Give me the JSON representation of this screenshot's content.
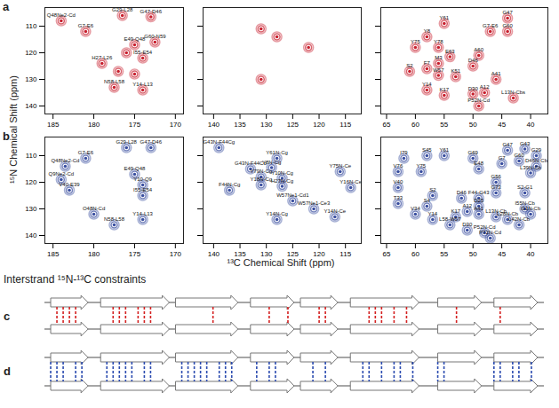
{
  "figure": {
    "panels": [
      "a",
      "b",
      "c",
      "d"
    ],
    "y_label": "¹⁵N Chemical Shift (ppm)",
    "x_label": "¹³C Chemical Shift (ppm)"
  },
  "chart_data": [
    {
      "type": "scatter",
      "color": "#c8202e",
      "xlim": [
        186,
        169
      ],
      "ylim": [
        143,
        103
      ],
      "xticks": [
        185,
        180,
        175,
        170
      ],
      "yticks": [
        110,
        120,
        130,
        140
      ],
      "tick_labels": true,
      "x": [
        184,
        176.5,
        173,
        181,
        175,
        172.5,
        174,
        179,
        177.5,
        174,
        176,
        177,
        175
      ],
      "values": [
        108,
        106,
        106.5,
        112,
        117,
        116,
        122,
        124,
        133,
        134,
        120,
        127,
        128
      ],
      "labels": [
        "Q48Ne2-Cd",
        "G29-L28",
        "G47-D46",
        "G7-E6",
        "E49-Q48",
        "G60-N59",
        "I55-E54",
        "H27-L26",
        "N58-L58",
        "Y14-L13",
        null,
        null,
        null
      ]
    },
    {
      "type": "scatter",
      "color": "#c8202e",
      "xlim": [
        142,
        112
      ],
      "ylim": [
        143,
        103
      ],
      "xticks": [
        140,
        135,
        130,
        125,
        120,
        115
      ],
      "yticks": [
        110,
        120,
        130,
        140
      ],
      "tick_labels": "x",
      "x": [
        131,
        128,
        131,
        122
      ],
      "values": [
        111,
        114,
        130,
        118
      ],
      "labels": [
        null,
        null,
        null,
        null
      ]
    },
    {
      "type": "scatter",
      "color": "#c8202e",
      "xlim": [
        66,
        37
      ],
      "ylim": [
        143,
        103
      ],
      "xticks": [
        65,
        60,
        55,
        50,
        45,
        40
      ],
      "yticks": [
        110,
        120,
        130,
        140
      ],
      "tick_labels": "x",
      "x": [
        44,
        55,
        44,
        47,
        58,
        60,
        56,
        54,
        49,
        56,
        50,
        58,
        61,
        56,
        53,
        46,
        58,
        55,
        50,
        48,
        43,
        49
      ],
      "values": [
        107,
        109,
        112,
        112,
        114,
        118,
        118,
        121.5,
        121,
        124,
        125,
        126,
        127,
        128.5,
        129,
        130,
        134,
        136,
        135.5,
        135,
        137,
        140
      ],
      "labels": [
        "G47",
        "Y61",
        "G60",
        "G7-E6",
        "Y8",
        "Y75",
        "Y78",
        "E63",
        "A60",
        "M3",
        "D46",
        "F7",
        "S2",
        "W57",
        "K51",
        "A41",
        "Y14",
        "K17",
        "D30",
        "A12",
        "L13N-Cbs",
        "P52N-Cd"
      ]
    },
    {
      "type": "scatter",
      "color": "#3a4fa0",
      "xlim": [
        186,
        169
      ],
      "ylim": [
        143,
        103
      ],
      "xticks": [
        185,
        180,
        175,
        170
      ],
      "yticks": [
        110,
        120,
        130,
        140
      ],
      "tick_labels": true,
      "x": [
        181,
        176,
        173,
        183.5,
        184,
        175,
        174,
        183,
        174,
        180,
        177.5,
        174
      ],
      "values": [
        111,
        107,
        107,
        114,
        119,
        117,
        121,
        123,
        125,
        132,
        136,
        134
      ],
      "labels": [
        "G7-E6",
        "G29-L28",
        "G47-D46",
        "Q48Ne2-Cd",
        "Q9Ne2-Cd",
        "E49-Q48",
        "Y10-Q9",
        "V40-E39",
        "I55-E54",
        "O48N-Cd",
        "N58-L58",
        "Y14-L13"
      ]
    },
    {
      "type": "scatter",
      "color": "#3a4fa0",
      "xlim": [
        142,
        112
      ],
      "ylim": [
        143,
        103
      ],
      "xticks": [
        140,
        135,
        130,
        125,
        120,
        115
      ],
      "yticks": [
        110,
        120,
        130,
        140
      ],
      "tick_labels": "x",
      "x": [
        139,
        133,
        137,
        131,
        128,
        129,
        131,
        127,
        127,
        116,
        114,
        125,
        121,
        128,
        117
      ],
      "values": [
        107,
        115,
        123,
        118,
        111,
        114.5,
        121,
        118.5,
        121.5,
        116,
        122,
        127,
        130,
        134,
        133
      ],
      "labels": [
        "G43N-F44Cg",
        "G43N-F44Cd",
        "F44N-Cg",
        "Y79N-Cg",
        "Y61N-Cg",
        "Y8N-Cg",
        "Y18N-Cg",
        "Y10N-Cg",
        "H27N-Cg",
        "Y75N-Ce",
        "Y16N-Ce",
        "W57Ne1-Cd1",
        "W57Ne1-Ce3",
        "Y14N-Cg",
        "Y14N-Ce"
      ]
    },
    {
      "type": "scatter",
      "color": "#3a4fa0",
      "xlim": [
        66,
        37
      ],
      "ylim": [
        143,
        103
      ],
      "xticks": [
        65,
        60,
        55,
        50,
        45,
        40
      ],
      "yticks": [
        110,
        120,
        130,
        140
      ],
      "tick_labels": "x",
      "x": [
        62,
        58,
        55,
        50,
        44,
        41,
        39,
        45,
        39,
        40,
        42,
        63,
        59,
        49,
        46,
        63,
        46,
        49,
        52,
        41,
        57,
        63,
        58,
        49,
        51,
        49,
        46,
        41,
        40,
        53,
        57,
        44,
        42,
        60,
        54,
        51,
        48,
        47
      ],
      "values": [
        111,
        110,
        110,
        111,
        108,
        107.5,
        110,
        113,
        114,
        116.5,
        112,
        116,
        116,
        115,
        120,
        122,
        124,
        126,
        126,
        124,
        125,
        128,
        129,
        129,
        131,
        132,
        133,
        130,
        132,
        133,
        134,
        134,
        136,
        132,
        136,
        138,
        139,
        141
      ],
      "labels": [
        "I79",
        "S45",
        "Y61",
        "G69",
        "G47",
        "G43",
        "G29",
        "G7",
        "D46N-Cb",
        "L39N-Cb",
        "G60",
        "V76",
        "Y75",
        "E48",
        "G56",
        "V40",
        "G73",
        "F44-G43",
        "D46",
        "S2-G1",
        "S2",
        "T33",
        "S4",
        "D25",
        "A12",
        "A41",
        "L13N-Cb",
        "I55N-Cb",
        "I31N-Cb",
        "K17",
        "Y14",
        "L28N-Cb",
        "L42N-Cb",
        "V34",
        "L58-W57",
        "D30",
        "P52N-Cd",
        "P72N-Cd"
      ]
    }
  ],
  "strand_diagram": {
    "title": "Interstrand ¹⁵N-¹³C constraints",
    "residue_range": [
      0,
      80
    ],
    "strands": [
      [
        1,
        7
      ],
      [
        9,
        20
      ],
      [
        21,
        31
      ],
      [
        33,
        40
      ],
      [
        41,
        47
      ],
      [
        49,
        60
      ],
      [
        63,
        70
      ],
      [
        72,
        79
      ]
    ],
    "panels": [
      {
        "label": "c",
        "color": "#d42020",
        "constraints": [
          2,
          3,
          4,
          5,
          11,
          12,
          13,
          15,
          16,
          17,
          27,
          36,
          39,
          44,
          45,
          52,
          53,
          54,
          56,
          58,
          66,
          73
        ]
      },
      {
        "label": "d",
        "color": "#2b4bb0",
        "constraints": [
          1,
          2,
          3,
          5,
          6,
          10,
          11,
          12,
          13,
          14,
          16,
          17,
          22,
          23,
          24,
          25,
          26,
          28,
          29,
          30,
          34,
          36,
          37,
          43,
          45,
          51,
          52,
          54,
          56,
          57,
          59,
          63,
          64,
          72,
          73,
          75,
          76,
          78
        ]
      }
    ]
  }
}
